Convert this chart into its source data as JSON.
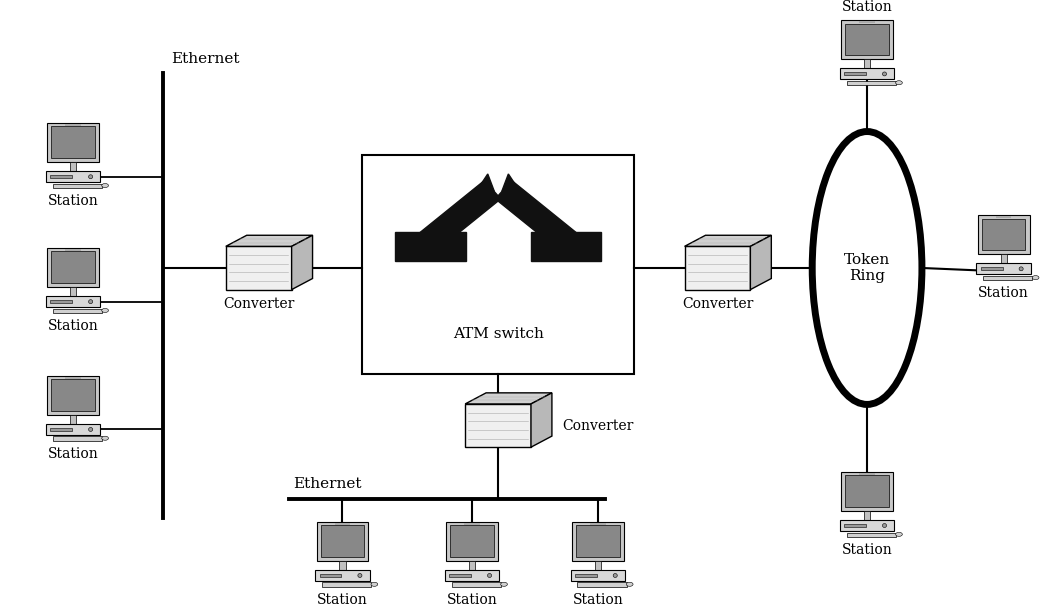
{
  "bg_color": "#ffffff",
  "figsize": [
    10.41,
    6.11
  ],
  "dpi": 100,
  "ethernet_left_label": "Ethernet",
  "ethernet_bottom_label": "Ethernet",
  "token_ring_label": "Token\nRing",
  "converter_label": "Converter",
  "atm_switch_label": "ATM switch",
  "station_label": "Station",
  "line_color": "#000000",
  "box_face": "#ffffff",
  "conv_front": "#f0f0f0",
  "conv_top": "#cccccc",
  "conv_right": "#aaaaaa",
  "monitor_face": "#b8b8b8",
  "monitor_screen": "#888888",
  "atm_symbol_color": "#111111"
}
